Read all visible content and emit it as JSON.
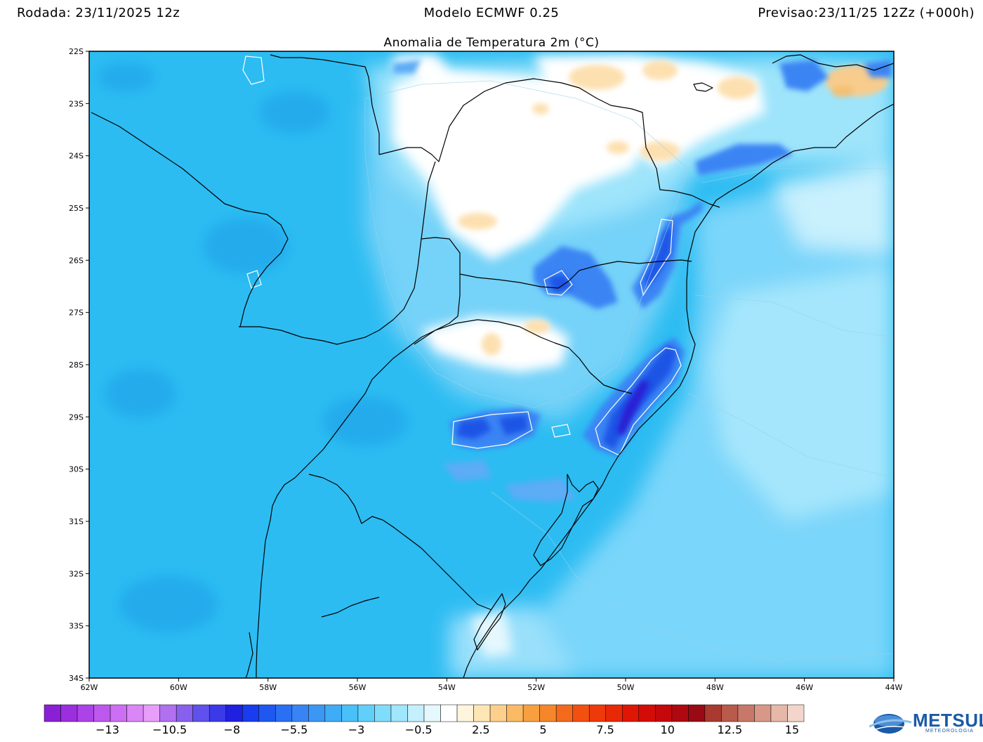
{
  "header": {
    "left": "Rodada: 23/11/2025 12z",
    "center": "Modelo ECMWF 0.25",
    "right": "Previsao:23/11/25 12Zz (+000h)"
  },
  "title": "Anomalia de Temperatura 2m (°C)",
  "map": {
    "lat_labels": [
      "22S",
      "23S",
      "24S",
      "25S",
      "26S",
      "27S",
      "28S",
      "29S",
      "30S",
      "31S",
      "32S",
      "33S",
      "34S"
    ],
    "lon_labels": [
      "62W",
      "60W",
      "58W",
      "56W",
      "54W",
      "52W",
      "50W",
      "48W",
      "46W",
      "44W"
    ],
    "lat_range": [
      -34,
      -22
    ],
    "lon_range": [
      -62,
      -44
    ],
    "colors": {
      "bg_deep": "#1fb4f0",
      "bg_mid": "#48c8f6",
      "bg_light": "#8fdcfa",
      "cold_strong": "#1f55e6",
      "cold_extreme": "#2a1fd4",
      "neutral": "#ffffff",
      "warm_light": "#fde8c8",
      "warm": "#f5c88a",
      "border": "#000000"
    }
  },
  "colorbar": {
    "colors": [
      "#8a1fd6",
      "#9b2fe0",
      "#ac43e8",
      "#bd58ef",
      "#cd6ff4",
      "#da86f7",
      "#e69ef9",
      "#b070f0",
      "#8860ee",
      "#6050ec",
      "#3a3ae8",
      "#2020e0",
      "#1a3cef",
      "#1e58f0",
      "#2a70f2",
      "#3884f4",
      "#3a98f4",
      "#40acf6",
      "#48c0f8",
      "#60d0fa",
      "#80dcfb",
      "#a0e6fc",
      "#c4f0fd",
      "#e4f8fe",
      "#ffffff",
      "#fff4dc",
      "#fee6b4",
      "#fcd08c",
      "#faba64",
      "#f8a040",
      "#f6862a",
      "#f46a1c",
      "#f25010",
      "#ee3a0a",
      "#e82806",
      "#e01604",
      "#d40c08",
      "#c4080c",
      "#b00810",
      "#9a0a14",
      "#a83a30",
      "#b85a4c",
      "#c87868",
      "#d89888",
      "#e6b8a8",
      "#f2d6cc"
    ],
    "labels": [
      "−13",
      "−10.5",
      "−8",
      "−5.5",
      "−3",
      "−0.5",
      "2.5",
      "5",
      "7.5",
      "10",
      "12.5",
      "15"
    ]
  },
  "logo": {
    "name": "METSUL",
    "sub": "METEOROLOGIA"
  }
}
